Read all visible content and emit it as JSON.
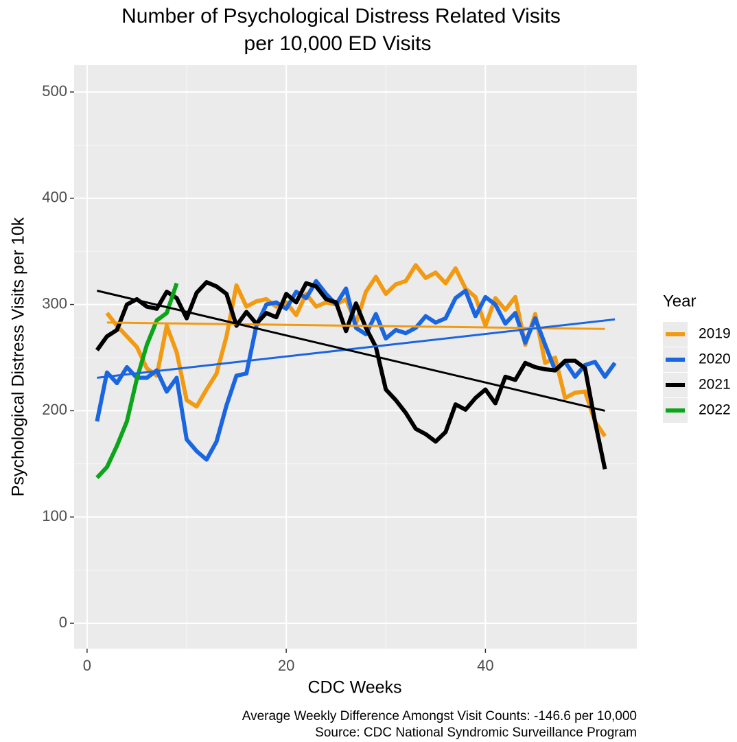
{
  "chart_data": {
    "type": "line",
    "title": "Number of Psychological Distress Related Visits",
    "subtitle": "per 10,000 ED Visits",
    "x_label": "CDC Weeks",
    "y_label": "Psychological Distress Visits per 10k",
    "legend_title": "Year",
    "legend_position": "right",
    "caption": [
      "Average Weekly Difference Amongst Visit Counts: -146.6 per 10,000",
      "Source: CDC National Syndromic Surveillance Program"
    ],
    "xlim": [
      -1.3,
      55.2
    ],
    "ylim": [
      -23.9,
      525.2
    ],
    "xticks": [
      0,
      20,
      40
    ],
    "yticks": [
      0,
      100,
      200,
      300,
      400,
      500
    ],
    "grid": true,
    "series": [
      {
        "name": "2019",
        "color": "#f29a12",
        "x": [
          2,
          3,
          4,
          5,
          6,
          7,
          8,
          9,
          10,
          11,
          12,
          13,
          14,
          15,
          16,
          17,
          18,
          19,
          20,
          21,
          22,
          23,
          24,
          25,
          26,
          27,
          28,
          29,
          30,
          31,
          32,
          33,
          34,
          35,
          36,
          37,
          38,
          39,
          40,
          41,
          42,
          43,
          44,
          45,
          46,
          47,
          48,
          49,
          50,
          51,
          52
        ],
        "values": [
          292,
          280,
          270,
          260,
          240,
          233,
          280,
          255,
          210,
          204,
          220,
          235,
          270,
          318,
          298,
          303,
          305,
          298,
          302,
          290,
          310,
          298,
          302,
          300,
          305,
          282,
          312,
          326,
          310,
          319,
          322,
          337,
          325,
          330,
          320,
          334,
          315,
          307,
          280,
          306,
          295,
          307,
          262,
          291,
          245,
          250,
          212,
          217,
          218,
          190,
          176
        ],
        "trend": {
          "x": [
            2,
            52
          ],
          "values": [
            283,
            277
          ]
        }
      },
      {
        "name": "2020",
        "color": "#1a66e0",
        "x": [
          1,
          2,
          3,
          4,
          5,
          6,
          7,
          8,
          9,
          10,
          11,
          12,
          13,
          14,
          15,
          16,
          17,
          18,
          19,
          20,
          21,
          22,
          23,
          24,
          25,
          26,
          27,
          28,
          29,
          30,
          31,
          32,
          33,
          34,
          35,
          36,
          37,
          38,
          39,
          40,
          41,
          42,
          43,
          44,
          45,
          46,
          47,
          48,
          49,
          50,
          51,
          52,
          53
        ],
        "values": [
          190,
          236,
          226,
          241,
          231,
          231,
          238,
          218,
          231,
          173,
          162,
          154,
          171,
          205,
          233,
          235,
          280,
          300,
          302,
          296,
          312,
          306,
          322,
          310,
          300,
          315,
          278,
          272,
          291,
          268,
          276,
          273,
          278,
          289,
          283,
          287,
          306,
          313,
          289,
          307,
          300,
          282,
          292,
          264,
          287,
          262,
          238,
          246,
          232,
          243,
          246,
          232,
          245
        ],
        "trend": {
          "x": [
            1,
            53
          ],
          "values": [
            231,
            286
          ]
        }
      },
      {
        "name": "2021",
        "color": "#000000",
        "x": [
          1,
          2,
          3,
          4,
          5,
          6,
          7,
          8,
          9,
          10,
          11,
          12,
          13,
          14,
          15,
          16,
          17,
          18,
          19,
          20,
          21,
          22,
          23,
          24,
          25,
          26,
          27,
          28,
          29,
          30,
          31,
          32,
          33,
          34,
          35,
          36,
          37,
          38,
          39,
          40,
          41,
          42,
          43,
          44,
          45,
          46,
          47,
          48,
          49,
          50,
          51,
          52
        ],
        "values": [
          257,
          270,
          276,
          300,
          305,
          298,
          296,
          312,
          306,
          287,
          311,
          321,
          317,
          310,
          280,
          293,
          282,
          292,
          288,
          310,
          302,
          320,
          317,
          305,
          302,
          275,
          301,
          278,
          260,
          220,
          210,
          198,
          183,
          178,
          171,
          180,
          206,
          201,
          212,
          220,
          207,
          232,
          229,
          245,
          241,
          239,
          238,
          247,
          247,
          240,
          190,
          145
        ],
        "trend": {
          "x": [
            1,
            52
          ],
          "values": [
            313,
            200
          ]
        }
      },
      {
        "name": "2022",
        "color": "#0ba51a",
        "x": [
          1,
          2,
          3,
          4,
          5,
          6,
          7,
          8,
          9
        ],
        "values": [
          137,
          147,
          167,
          190,
          230,
          262,
          285,
          292,
          320
        ]
      }
    ]
  }
}
